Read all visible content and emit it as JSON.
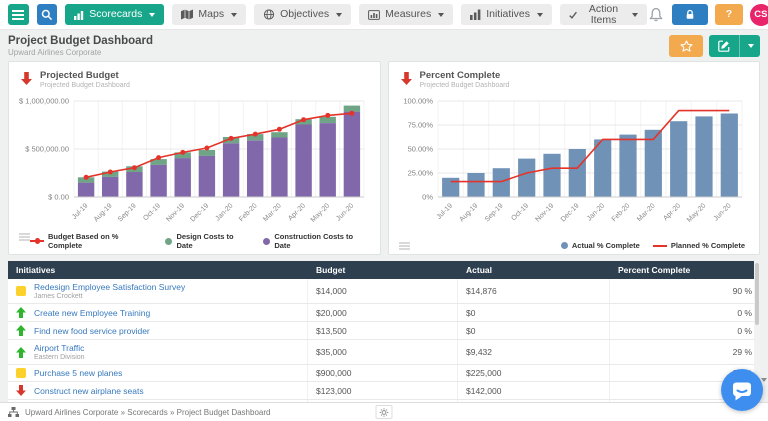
{
  "navbar": {
    "items": [
      {
        "label": "Scorecards"
      },
      {
        "label": "Maps"
      },
      {
        "label": "Objectives"
      },
      {
        "label": "Measures"
      },
      {
        "label": "Initiatives"
      },
      {
        "label": "Action Items"
      }
    ],
    "help_label": "?",
    "avatar_initials": "CS"
  },
  "header": {
    "title": "Project Budget Dashboard",
    "subtitle": "Upward Airlines Corporate"
  },
  "panels": {
    "left": {
      "title": "Projected Budget",
      "subtitle": "Projected Budget Dashboard"
    },
    "right": {
      "title": "Percent Complete",
      "subtitle": "Projected Budget Dashboard"
    }
  },
  "chart_data": [
    {
      "type": "bar",
      "title": "Projected Budget",
      "subtitle": "Projected Budget Dashboard",
      "stacked": true,
      "categories": [
        "Jul-19",
        "Aug-19",
        "Sep-19",
        "Oct-19",
        "Nov-19",
        "Dec-19",
        "Jan-20",
        "Feb-20",
        "Mar-20",
        "Apr-20",
        "May-20",
        "Jun-20"
      ],
      "series": [
        {
          "name": "Construction Costs to Date",
          "type": "bar",
          "color": "#8168aa",
          "values": [
            150000,
            210000,
            260000,
            335000,
            405000,
            430000,
            560000,
            590000,
            620000,
            755000,
            770000,
            890000
          ]
        },
        {
          "name": "Design Costs to Date",
          "type": "bar",
          "color": "#6fa487",
          "values": [
            55000,
            55000,
            60000,
            60000,
            60000,
            60000,
            65000,
            65000,
            55000,
            55000,
            65000,
            62000
          ]
        },
        {
          "name": "Budget Based on % Complete",
          "type": "line",
          "color": "#e4332a",
          "markers": true,
          "values": [
            205000,
            260000,
            305000,
            410000,
            465000,
            510000,
            610000,
            655000,
            705000,
            805000,
            850000,
            872000
          ]
        }
      ],
      "ylim": [
        0,
        1000000
      ],
      "yticks": [
        {
          "value": 0,
          "label": "$ 0.00"
        },
        {
          "value": 500000,
          "label": "$ 500,000.00"
        },
        {
          "value": 1000000,
          "label": "$ 1,000,000.00"
        }
      ],
      "legend_position": "bottom",
      "legend": [
        {
          "label": "Budget Based on % Complete",
          "swatch": "line-marker",
          "color": "#e4332a"
        },
        {
          "label": "Design Costs to Date",
          "swatch": "dot",
          "color": "#6fa487"
        },
        {
          "label": "Construction Costs to Date",
          "swatch": "dot",
          "color": "#8168aa"
        }
      ]
    },
    {
      "type": "bar",
      "title": "Percent Complete",
      "subtitle": "Projected Budget Dashboard",
      "stacked": false,
      "categories": [
        "Jul-19",
        "Aug-19",
        "Sep-19",
        "Oct-19",
        "Nov-19",
        "Dec-19",
        "Jan-20",
        "Feb-20",
        "Mar-20",
        "Apr-20",
        "May-20",
        "Jun-20"
      ],
      "series": [
        {
          "name": "Actual % Complete",
          "type": "bar",
          "color": "#7092b7",
          "values": [
            20,
            25,
            30,
            40,
            45,
            50,
            60,
            65,
            70,
            79,
            84,
            87
          ]
        },
        {
          "name": "Planned % Complete",
          "type": "line",
          "color": "#e4332a",
          "markers": false,
          "values": [
            16,
            16,
            16,
            25,
            30,
            30,
            60,
            60,
            60,
            90,
            90,
            90
          ]
        }
      ],
      "ylim": [
        0,
        100
      ],
      "yticks": [
        {
          "value": 0,
          "label": "0%"
        },
        {
          "value": 25,
          "label": "25.00%"
        },
        {
          "value": 50,
          "label": "50.00%"
        },
        {
          "value": 75,
          "label": "75.00%"
        },
        {
          "value": 100,
          "label": "100.00%"
        }
      ],
      "legend_position": "bottom",
      "legend": [
        {
          "label": "Actual % Complete",
          "swatch": "dot",
          "color": "#7092b7"
        },
        {
          "label": "Planned % Complete",
          "swatch": "line",
          "color": "#e4332a"
        }
      ]
    }
  ],
  "table": {
    "columns": [
      "Initiatives",
      "Budget",
      "Actual",
      "Percent Complete"
    ],
    "rows": [
      {
        "icon": "yellow-square",
        "name": "Redesign Employee Satisfaction Survey",
        "owner": "James Crockett",
        "budget": "$14,000",
        "actual": "$14,876",
        "percent": "90 %"
      },
      {
        "icon": "green-up",
        "name": "Create new Employee Training",
        "owner": "",
        "budget": "$20,000",
        "actual": "$0",
        "percent": "0 %"
      },
      {
        "icon": "green-up",
        "name": "Find new food service provider",
        "owner": "",
        "budget": "$13,500",
        "actual": "$0",
        "percent": "0 %"
      },
      {
        "icon": "green-up",
        "name": "Airport Traffic",
        "owner": "Eastern Division",
        "budget": "$35,000",
        "actual": "$9,432",
        "percent": "29 %"
      },
      {
        "icon": "yellow-square",
        "name": "Purchase 5 new planes",
        "owner": "",
        "budget": "$900,000",
        "actual": "$225,000",
        "percent": "24 %"
      },
      {
        "icon": "red-down",
        "name": "Construct new airplane seats",
        "owner": "",
        "budget": "$123,000",
        "actual": "$142,000",
        "percent": "88 %"
      },
      {
        "icon": "yellow-square",
        "name": "",
        "owner": "",
        "budget": "",
        "actual": "",
        "percent": "",
        "partial": true
      }
    ]
  },
  "footer": {
    "breadcrumb": "Upward Airlines Corporate » Scorecards » Project Budget Dashboard"
  },
  "colors": {
    "accent_green": "#17a689",
    "accent_blue": "#2d7fc1",
    "accent_orange": "#f3a94d",
    "avatar_pink": "#e8246a",
    "table_header_navy": "#2e3f50",
    "link_blue": "#3779bd",
    "status_yellow": "#fdd12b",
    "status_green": "#2eb52d",
    "status_red": "#d5392e",
    "chat_blue": "#3e8ef0"
  }
}
